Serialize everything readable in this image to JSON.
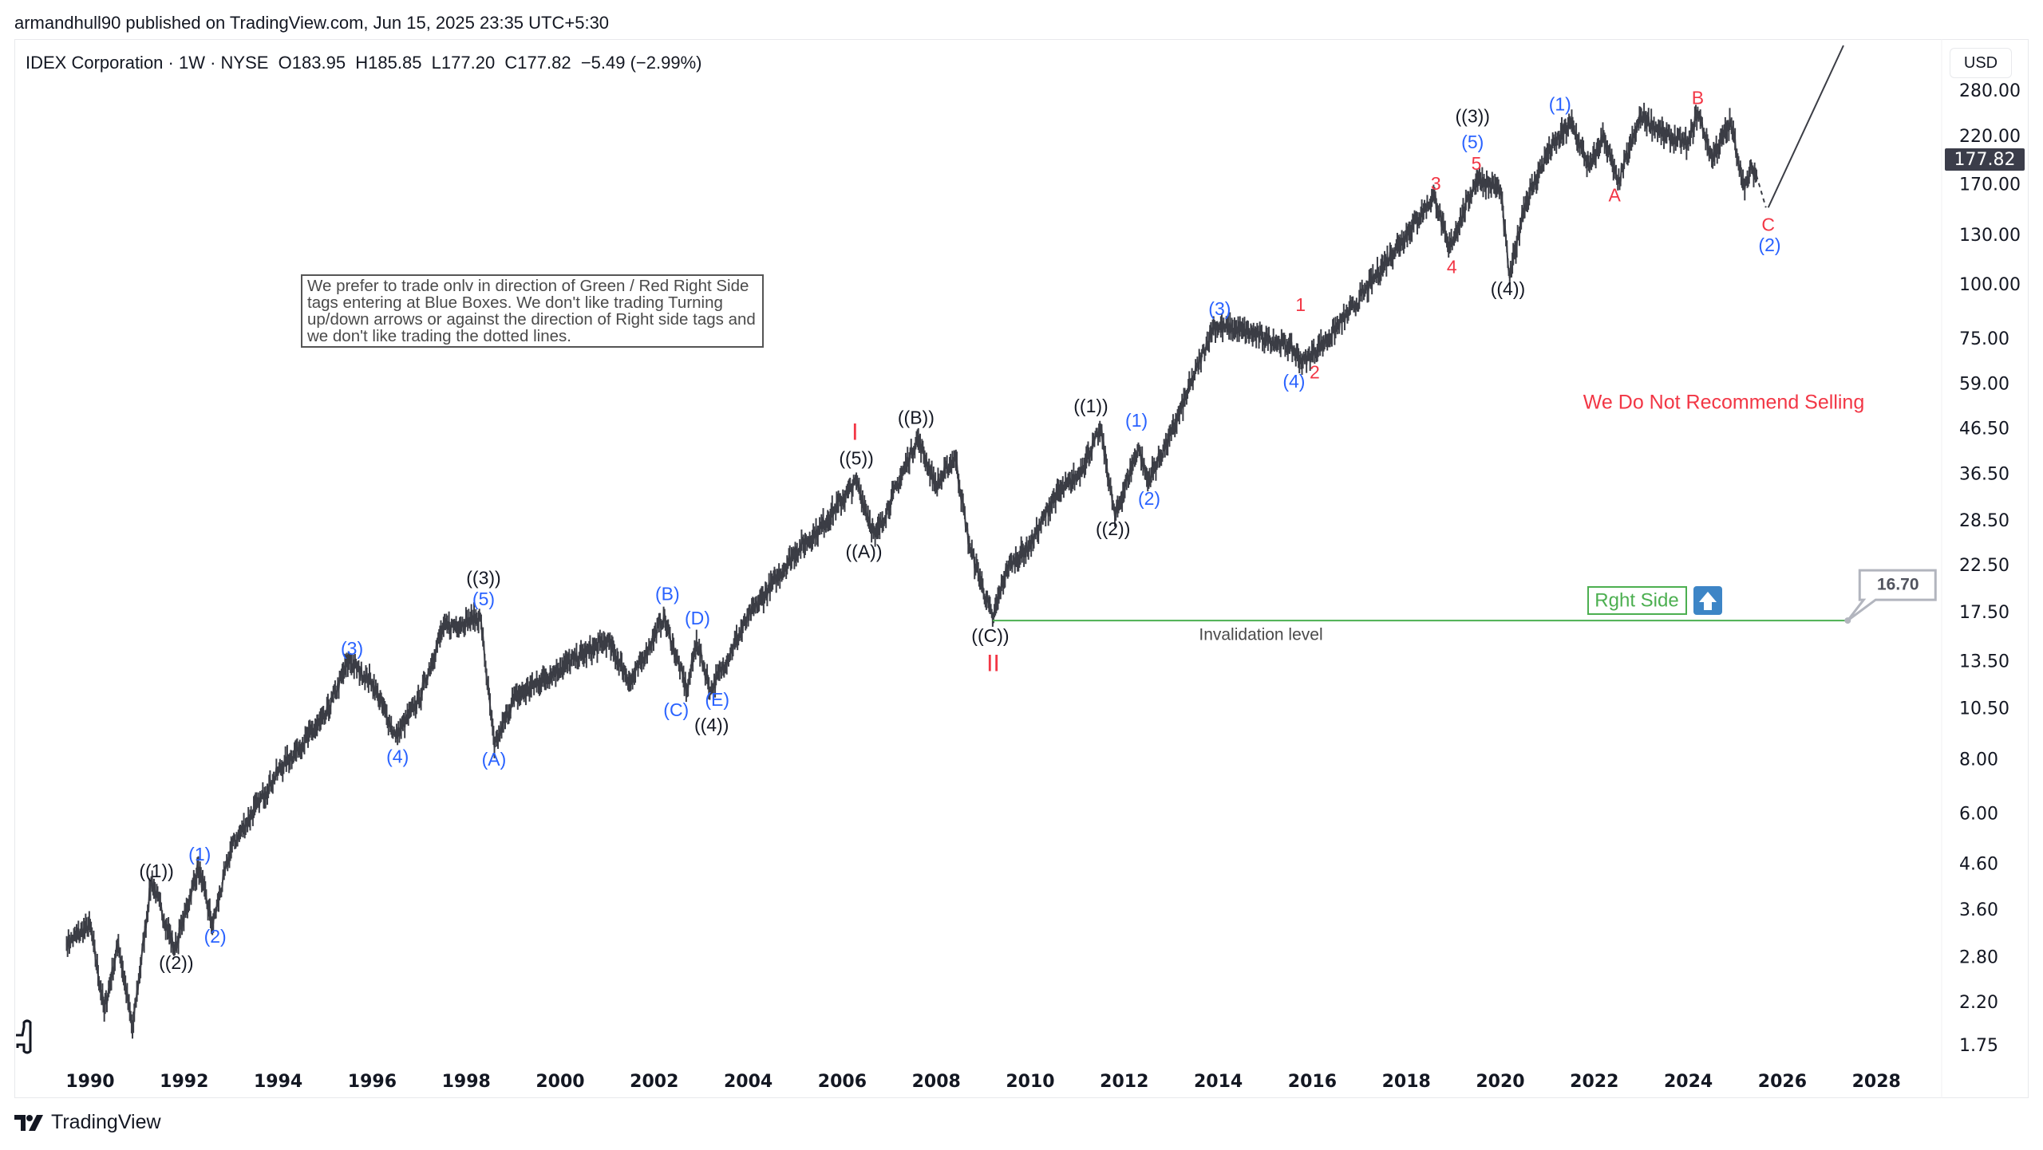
{
  "header": {
    "published": "armandhull90 published on TradingView.com, Jun 15, 2025 23:35 UTC+5:30",
    "legend": "IDEX Corporation · 1W · NYSE  O183.95  H185.85  L177.20  C177.82  −5.49 (−2.99%)",
    "currency": "USD"
  },
  "footer": {
    "brand": "TradingView"
  },
  "note": "We prefer to trade onlv in direction of Green / Red Right Side tags entering at Blue Boxes. We don't like trading Turning up/down arrows or against the direction of Right side tags and we don't like trading the dotted lines.",
  "annotations": {
    "no_sell": "We Do Not Recommend Selling",
    "right_side": "Rght Side",
    "invalidation": "Invalidation level",
    "invalidation_price": "16.70",
    "last_price": "177.82"
  },
  "colors": {
    "black": "#131722",
    "blue": "#2962ff",
    "red": "#f23645",
    "green": "#4caf50",
    "series": "#3b3d45",
    "box_blue": "#3d85c6"
  },
  "chart_data": {
    "type": "line",
    "title": "IDEX Corporation · 1W · NYSE",
    "scale": "log",
    "xlim": [
      1989.3,
      2029.3
    ],
    "ylim": [
      1.6,
      300
    ],
    "x_ticks": [
      "1990",
      "1992",
      "1994",
      "1996",
      "1998",
      "2000",
      "2002",
      "2004",
      "2006",
      "2008",
      "2010",
      "2012",
      "2014",
      "2016",
      "2018",
      "2020",
      "2022",
      "2024",
      "2026",
      "2028"
    ],
    "y_ticks": [
      "280.00",
      "220.00",
      "170.00",
      "130.00",
      "100.00",
      "75.00",
      "59.00",
      "46.50",
      "36.50",
      "28.50",
      "22.50",
      "17.50",
      "13.50",
      "10.50",
      "8.00",
      "6.00",
      "4.60",
      "3.60",
      "2.80",
      "2.20",
      "1.75"
    ],
    "series": [
      {
        "points": [
          [
            1989.5,
            3.0
          ],
          [
            1990.0,
            3.3
          ],
          [
            1990.3,
            2.1
          ],
          [
            1990.6,
            3.0
          ],
          [
            1990.9,
            1.9
          ],
          [
            1991.3,
            4.2
          ],
          [
            1991.8,
            2.9
          ],
          [
            1992.3,
            4.5
          ],
          [
            1992.6,
            3.3
          ],
          [
            1993.0,
            5.0
          ],
          [
            1994.0,
            7.5
          ],
          [
            1995.0,
            10
          ],
          [
            1995.5,
            13.5
          ],
          [
            1996.0,
            12
          ],
          [
            1996.5,
            9
          ],
          [
            1997.0,
            11
          ],
          [
            1997.5,
            16
          ],
          [
            1998.3,
            17
          ],
          [
            1998.6,
            8.5
          ],
          [
            1999.0,
            11
          ],
          [
            2000.0,
            13
          ],
          [
            2001.0,
            15
          ],
          [
            2001.5,
            12
          ],
          [
            2002.2,
            17
          ],
          [
            2002.7,
            11.5
          ],
          [
            2002.9,
            15
          ],
          [
            2003.2,
            11.5
          ],
          [
            2004.0,
            17
          ],
          [
            2005.0,
            24
          ],
          [
            2005.5,
            27
          ],
          [
            2006.3,
            35
          ],
          [
            2006.7,
            26
          ],
          [
            2007.6,
            44
          ],
          [
            2008.0,
            34
          ],
          [
            2008.4,
            40
          ],
          [
            2008.7,
            25
          ],
          [
            2009.2,
            16.8
          ],
          [
            2009.5,
            22
          ],
          [
            2010.0,
            25
          ],
          [
            2010.5,
            32
          ],
          [
            2011.0,
            36
          ],
          [
            2011.5,
            46
          ],
          [
            2011.8,
            29
          ],
          [
            2012.3,
            42
          ],
          [
            2012.5,
            35
          ],
          [
            2013.0,
            45
          ],
          [
            2013.9,
            80
          ],
          [
            2014.5,
            78
          ],
          [
            2015.5,
            72
          ],
          [
            2015.8,
            66
          ],
          [
            2016.3,
            74
          ],
          [
            2017.0,
            92
          ],
          [
            2017.5,
            110
          ],
          [
            2018.6,
            160
          ],
          [
            2018.9,
            120
          ],
          [
            2019.5,
            175
          ],
          [
            2020.0,
            165
          ],
          [
            2020.2,
            103
          ],
          [
            2020.5,
            150
          ],
          [
            2021.0,
            200
          ],
          [
            2021.5,
            235
          ],
          [
            2021.9,
            185
          ],
          [
            2022.2,
            220
          ],
          [
            2022.5,
            170
          ],
          [
            2023.0,
            245
          ],
          [
            2023.5,
            220
          ],
          [
            2024.0,
            210
          ],
          [
            2024.2,
            250
          ],
          [
            2024.5,
            195
          ],
          [
            2024.9,
            235
          ],
          [
            2025.2,
            165
          ],
          [
            2025.35,
            185
          ],
          [
            2025.45,
            177.82
          ]
        ]
      }
    ],
    "dotted_path": [
      [
        2025.45,
        177.82
      ],
      [
        2025.65,
        150
      ]
    ],
    "projection": [
      [
        2025.7,
        150
      ],
      [
        2027.3,
        355
      ]
    ],
    "invalidation_line": {
      "price": 16.7,
      "from": 2009.2,
      "to": 2027.39
    },
    "wave_labels": [
      {
        "t": "((1))",
        "c": "black",
        "x": 1991.41,
        "y": 4.38
      },
      {
        "t": "((2))",
        "c": "black",
        "x": 1991.83,
        "y": 2.69
      },
      {
        "t": "(1)",
        "c": "blue",
        "x": 1992.33,
        "y": 4.79
      },
      {
        "t": "(2)",
        "c": "blue",
        "x": 1992.66,
        "y": 3.09
      },
      {
        "t": "(3)",
        "c": "blue",
        "x": 1995.57,
        "y": 14.3
      },
      {
        "t": "(4)",
        "c": "blue",
        "x": 1996.54,
        "y": 8.04
      },
      {
        "t": "((3))",
        "c": "black",
        "x": 1998.37,
        "y": 20.8
      },
      {
        "t": "(5)",
        "c": "blue",
        "x": 1998.37,
        "y": 18.6
      },
      {
        "t": "(A)",
        "c": "blue",
        "x": 1998.59,
        "y": 7.93
      },
      {
        "t": "(B)",
        "c": "blue",
        "x": 2002.28,
        "y": 19.1
      },
      {
        "t": "(D)",
        "c": "blue",
        "x": 2002.92,
        "y": 16.8
      },
      {
        "t": "(C)",
        "c": "blue",
        "x": 2002.67,
        "y": 10.3
      },
      {
        "t": "(E)",
        "c": "blue",
        "x": 2003.17,
        "y": 10.9
      },
      {
        "t": "((4))",
        "c": "black",
        "x": 2003.22,
        "y": 9.5
      },
      {
        "t": "I",
        "c": "red",
        "x": 2006.27,
        "y": 45.1
      },
      {
        "t": "((5))",
        "c": "black",
        "x": 2006.3,
        "y": 39.3
      },
      {
        "t": "((A))",
        "c": "black",
        "x": 2006.46,
        "y": 23.9
      },
      {
        "t": "((B))",
        "c": "black",
        "x": 2007.57,
        "y": 48.7
      },
      {
        "t": "((C))",
        "c": "black",
        "x": 2009.15,
        "y": 15.3
      },
      {
        "t": "II",
        "c": "red",
        "x": 2009.21,
        "y": 13.2
      },
      {
        "t": "((1))",
        "c": "black",
        "x": 2011.29,
        "y": 51.8
      },
      {
        "t": "((2))",
        "c": "black",
        "x": 2011.76,
        "y": 27.0
      },
      {
        "t": "(1)",
        "c": "blue",
        "x": 2012.26,
        "y": 48.0
      },
      {
        "t": "(2)",
        "c": "blue",
        "x": 2012.53,
        "y": 31.7
      },
      {
        "t": "(3)",
        "c": "blue",
        "x": 2014.03,
        "y": 87.0
      },
      {
        "t": "1",
        "c": "red",
        "x": 2015.75,
        "y": 88.8
      },
      {
        "t": "(4)",
        "c": "blue",
        "x": 2015.61,
        "y": 59.1
      },
      {
        "t": "2",
        "c": "red",
        "x": 2016.05,
        "y": 62.0
      },
      {
        "t": "3",
        "c": "red",
        "x": 2018.63,
        "y": 169
      },
      {
        "t": "4",
        "c": "red",
        "x": 2018.97,
        "y": 108.6
      },
      {
        "t": "((3))",
        "c": "black",
        "x": 2019.41,
        "y": 242
      },
      {
        "t": "(5)",
        "c": "blue",
        "x": 2019.41,
        "y": 211
      },
      {
        "t": "5",
        "c": "red",
        "x": 2019.49,
        "y": 188
      },
      {
        "t": "((4))",
        "c": "black",
        "x": 2020.16,
        "y": 96.6
      },
      {
        "t": "(1)",
        "c": "blue",
        "x": 2021.27,
        "y": 258
      },
      {
        "t": "A",
        "c": "red",
        "x": 2022.43,
        "y": 159
      },
      {
        "t": "B",
        "c": "red",
        "x": 2024.2,
        "y": 267
      },
      {
        "t": "C",
        "c": "red",
        "x": 2025.7,
        "y": 136
      },
      {
        "t": "(2)",
        "c": "blue",
        "x": 2025.73,
        "y": 122
      }
    ]
  }
}
